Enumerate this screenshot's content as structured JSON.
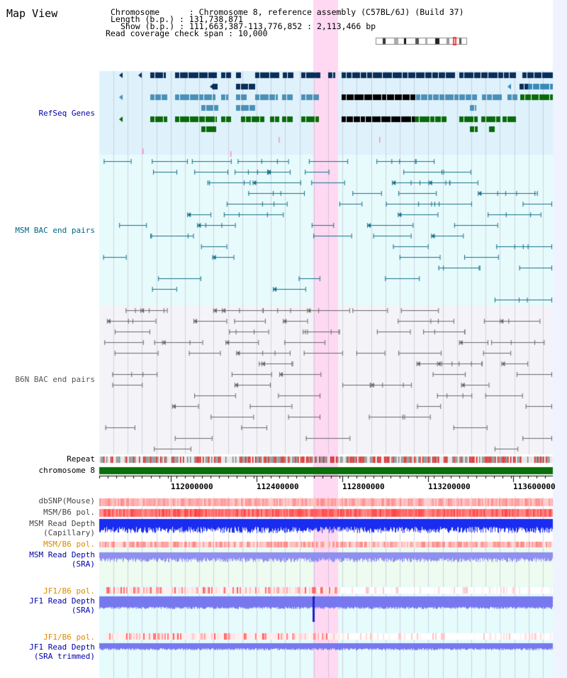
{
  "title": "Map View",
  "info": {
    "chromosome_key": "Chromosome",
    "chromosome_val": "Chromosome 8, reference assembly (C57BL/6J) (Build 37)",
    "length_key": "Length (b.p.)",
    "length_val": "131,738,871",
    "show_key": "Show (b.p.)",
    "show_val": "111,663,387-113,776,852 : 2,113,466 bp",
    "coverage_key": "Read coverage check span",
    "coverage_val": "10,000"
  },
  "tracks": {
    "refseq": "RefSeq Genes",
    "msm_bac": "MSM BAC end pairs",
    "b6n_bac": "B6N BAC end pairs",
    "repeat": "Repeat",
    "chromosome": "chromosome 8",
    "dbsnp": "dbSNP(Mouse)",
    "msm_b6_pol": "MSM/B6 pol.",
    "msm_depth_cap_1": "MSM Read Depth",
    "msm_depth_cap_2": "(Capillary)",
    "msm_b6_pol_2": "MSM/B6 pol.",
    "msm_depth_sra_1": "MSM Read Depth",
    "msm_depth_sra_2": "(SRA)",
    "jf1_pol": "JF1/B6 pol.",
    "jf1_depth_sra_1": "JF1 Read Depth",
    "jf1_depth_sra_2": "(SRA)",
    "jf1_pol_2": "JF1/B6 pol.",
    "jf1_depth_trim_1": "JF1 Read Depth",
    "jf1_depth_trim_2": "(SRA trimmed)"
  },
  "axis": {
    "ticks": [
      "112000000",
      "112400000",
      "112800000",
      "113200000",
      "113600000"
    ]
  },
  "colors": {
    "refseq_label": "#0000aa",
    "msm_label": "#006688",
    "b6n_label": "#555555",
    "orange_label": "#dd8800",
    "blue_label": "#0000aa",
    "highlight": "#ffd0f0"
  }
}
